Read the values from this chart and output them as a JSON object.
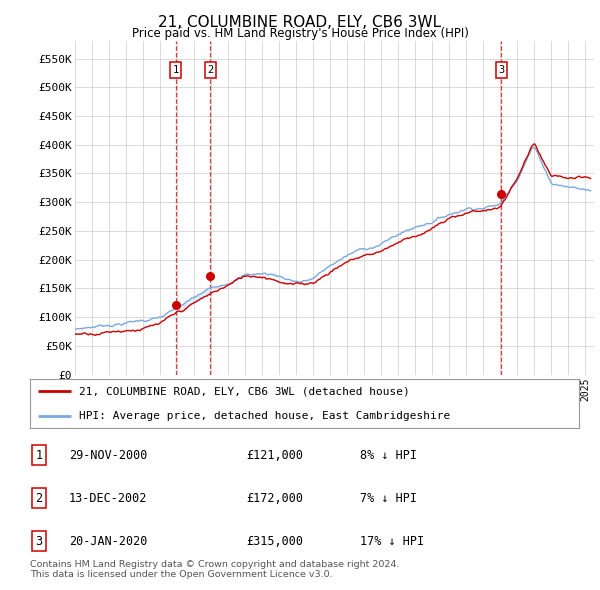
{
  "title": "21, COLUMBINE ROAD, ELY, CB6 3WL",
  "subtitle": "Price paid vs. HM Land Registry's House Price Index (HPI)",
  "ylabel_ticks": [
    "£0",
    "£50K",
    "£100K",
    "£150K",
    "£200K",
    "£250K",
    "£300K",
    "£350K",
    "£400K",
    "£450K",
    "£500K",
    "£550K"
  ],
  "ytick_values": [
    0,
    50000,
    100000,
    150000,
    200000,
    250000,
    300000,
    350000,
    400000,
    450000,
    500000,
    550000
  ],
  "ylim": [
    0,
    580000
  ],
  "xlim_start": 1995.0,
  "xlim_end": 2025.5,
  "sale_dates": [
    2000.91,
    2002.95,
    2020.05
  ],
  "sale_prices": [
    121000,
    172000,
    315000
  ],
  "sale_labels": [
    "1",
    "2",
    "3"
  ],
  "shading_x1": 2000.91,
  "shading_x2": 2002.95,
  "legend_line1": "21, COLUMBINE ROAD, ELY, CB6 3WL (detached house)",
  "legend_line2": "HPI: Average price, detached house, East Cambridgeshire",
  "table_entries": [
    {
      "label": "1",
      "date": "29-NOV-2000",
      "price": "£121,000",
      "hpi": "8% ↓ HPI"
    },
    {
      "label": "2",
      "date": "13-DEC-2002",
      "price": "£172,000",
      "hpi": "7% ↓ HPI"
    },
    {
      "label": "3",
      "date": "20-JAN-2020",
      "price": "£315,000",
      "hpi": "17% ↓ HPI"
    }
  ],
  "footer": "Contains HM Land Registry data © Crown copyright and database right 2024.\nThis data is licensed under the Open Government Licence v3.0.",
  "red_color": "#cc0000",
  "blue_color": "#7aaadd",
  "shading_color": "#ddeeff",
  "grid_color": "#cccccc",
  "background_color": "#ffffff"
}
